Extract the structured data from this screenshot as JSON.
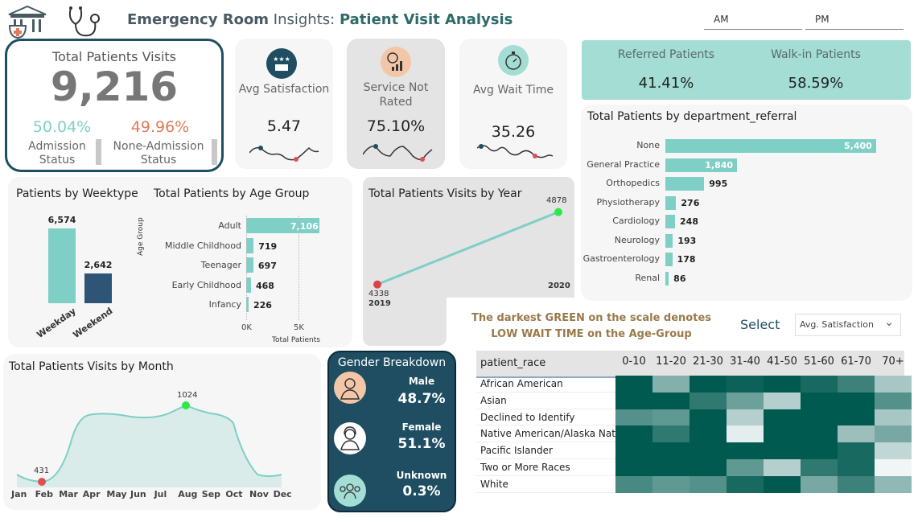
{
  "header": {
    "title_a": "Emergency Room",
    "title_b": " Insights: ",
    "title_c": "Patient Visit Analysis",
    "am": "AM",
    "pm": "PM",
    "hospital_icon": "hospital-icon",
    "stethoscope_icon": "stethoscope-icon"
  },
  "kpi_total": {
    "label": "Total Patients Visits",
    "value": "9,216",
    "admission_pct": "50.04%",
    "admission_label": "Admission Status",
    "none_admission_pct": "49.96%",
    "none_admission_label": "None-Admission Status"
  },
  "kpi_satisfaction": {
    "label": "Avg Satisfaction",
    "value": "5.47",
    "icon": "ratings-icon"
  },
  "kpi_not_rated": {
    "label": "Service Not Rated",
    "value": "75.10%",
    "icon": "chart-icon"
  },
  "kpi_wait": {
    "label": "Avg Wait Time",
    "value": "35.26",
    "icon": "stopwatch-icon"
  },
  "referral_split": {
    "referred_label": "Referred Patients",
    "referred_value": "41.41%",
    "walkin_label": "Walk-in Patients",
    "walkin_value": "58.59%"
  },
  "department_chart": {
    "title": "Total Patients by department_referral",
    "categories": [
      "None",
      "General Practice",
      "Orthopedics",
      "Physiotherapy",
      "Cardiology",
      "Neurology",
      "Gastroenterology",
      "Renal"
    ],
    "values": [
      5400,
      1840,
      995,
      276,
      248,
      193,
      178,
      86
    ],
    "labels": [
      "5,400",
      "1,840",
      "995",
      "276",
      "248",
      "193",
      "178",
      "86"
    ]
  },
  "weektype_chart": {
    "title": "Patients by Weektype",
    "categories": [
      "Weekday",
      "Weekend"
    ],
    "values": [
      6574,
      2642
    ],
    "labels": [
      "6,574",
      "2,642"
    ],
    "colors": [
      "#7ecfc6",
      "#2e5575"
    ]
  },
  "agegroup_chart": {
    "title": "Total Patients by Age Group",
    "ylabel": "Age Group",
    "xlabel": "Total Patients",
    "categories": [
      "Adult",
      "Middle Childhood",
      "Teenager",
      "Early Childhood",
      "Infancy"
    ],
    "values": [
      7106,
      719,
      697,
      468,
      226
    ],
    "labels": [
      "7,106",
      "719",
      "697",
      "468",
      "226"
    ],
    "ticks": [
      "0K",
      "5K"
    ]
  },
  "year_chart": {
    "title": "Total Patients Visits by Year",
    "x": [
      "2019",
      "2020"
    ],
    "values": [
      4338,
      4878
    ],
    "labels": [
      "4338",
      "4878"
    ]
  },
  "month_chart": {
    "title": "Total Patients Visits by Month",
    "months": [
      "Jan",
      "Feb",
      "Mar",
      "Apr",
      "May",
      "Jun",
      "Jul",
      "Aug",
      "Sep",
      "Oct",
      "Nov",
      "Dec"
    ],
    "min_label": "431",
    "max_label": "1024"
  },
  "gender": {
    "title": "Gender Breakdown",
    "male_label": "Male",
    "male_value": "48.7%",
    "female_label": "Female",
    "female_value": "51.1%",
    "unknown_label": "Unknown",
    "unknown_value": "0.3%"
  },
  "heatmap": {
    "note_line1": "The darkest GREEN on the scale denotes",
    "note_line2": "LOW WAIT TIME on the Age-Group",
    "select_label": "Select",
    "select_value": "Avg. Satisfaction",
    "row_header": "patient_race",
    "columns": [
      "0-10",
      "11-20",
      "21-30",
      "31-40",
      "41-50",
      "51-60",
      "61-70",
      "70+"
    ],
    "rows": [
      "African American",
      "Asian",
      "Declined to Identify",
      "Native American/Alaska Native",
      "Pacific Islander",
      "Two or More Races",
      "White"
    ],
    "levels": [
      [
        1.0,
        0.45,
        1.0,
        0.95,
        1.0,
        0.9,
        0.75,
        0.3
      ],
      [
        1.0,
        1.0,
        0.8,
        0.55,
        0.25,
        1.0,
        1.0,
        0.65
      ],
      [
        0.65,
        0.6,
        1.0,
        0.25,
        1.0,
        1.0,
        1.0,
        0.3
      ],
      [
        1.0,
        0.8,
        1.0,
        0.05,
        1.0,
        1.0,
        0.35,
        0.5
      ],
      [
        1.0,
        1.0,
        1.0,
        1.0,
        1.0,
        1.0,
        0.9,
        0.2
      ],
      [
        1.0,
        1.0,
        1.0,
        0.6,
        0.25,
        0.8,
        0.9,
        0.0
      ],
      [
        0.7,
        0.6,
        0.65,
        0.9,
        1.0,
        0.5,
        0.75,
        0.4
      ]
    ]
  }
}
